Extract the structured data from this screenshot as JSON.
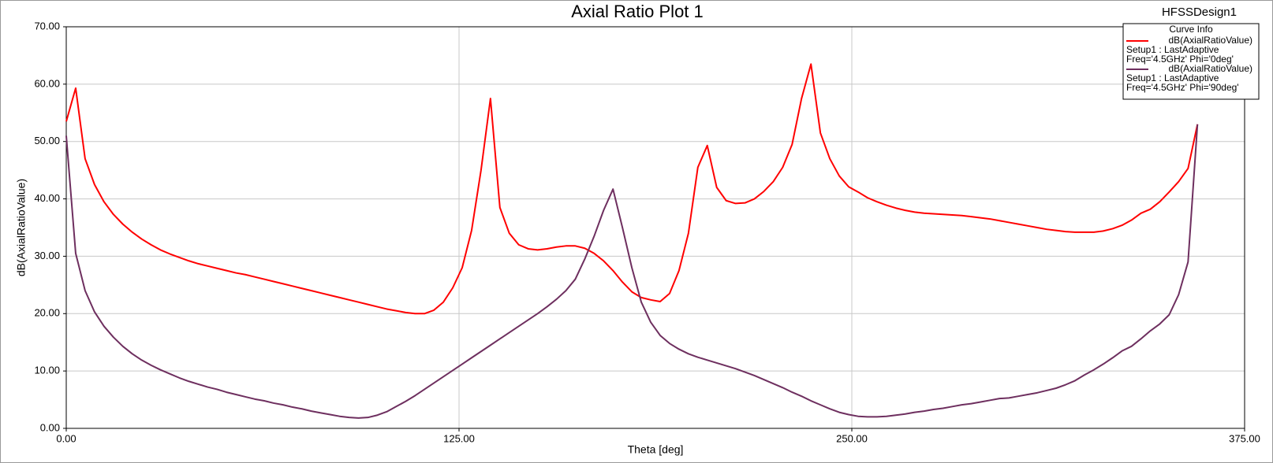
{
  "chart_data": {
    "type": "line",
    "title": "Axial Ratio Plot 1",
    "corner_label": "HFSSDesign1",
    "x_label": "Theta [deg]",
    "y_label": "dB(AxialRatioValue)",
    "legend_title": "Curve Info",
    "legend_position": "upper right",
    "grid": true,
    "xlim": [
      0,
      375
    ],
    "ylim": [
      0,
      70
    ],
    "xticks": [
      {
        "value": 0,
        "label": "0.00"
      },
      {
        "value": 125,
        "label": "125.00"
      },
      {
        "value": 250,
        "label": "250.00"
      },
      {
        "value": 375,
        "label": "375.00"
      }
    ],
    "yticks": [
      {
        "value": 0,
        "label": "0.00"
      },
      {
        "value": 10,
        "label": "10.00"
      },
      {
        "value": 20,
        "label": "20.00"
      },
      {
        "value": 30,
        "label": "30.00"
      },
      {
        "value": 40,
        "label": "40.00"
      },
      {
        "value": 50,
        "label": "50.00"
      },
      {
        "value": 60,
        "label": "60.00"
      },
      {
        "value": 70,
        "label": "70.00"
      }
    ],
    "x": [
      0,
      3,
      6,
      9,
      12,
      15,
      18,
      21,
      24,
      27,
      30,
      33,
      36,
      39,
      42,
      45,
      48,
      51,
      54,
      57,
      60,
      63,
      66,
      69,
      72,
      75,
      78,
      81,
      84,
      87,
      90,
      93,
      96,
      99,
      102,
      105,
      108,
      111,
      114,
      117,
      120,
      123,
      126,
      129,
      132,
      135,
      138,
      141,
      144,
      147,
      150,
      153,
      156,
      159,
      162,
      165,
      168,
      171,
      174,
      177,
      180,
      183,
      186,
      189,
      192,
      195,
      198,
      201,
      204,
      207,
      210,
      213,
      216,
      219,
      222,
      225,
      228,
      231,
      234,
      237,
      240,
      243,
      246,
      249,
      252,
      255,
      258,
      261,
      264,
      267,
      270,
      273,
      276,
      279,
      282,
      285,
      288,
      291,
      294,
      297,
      300,
      303,
      306,
      309,
      312,
      315,
      318,
      321,
      324,
      327,
      330,
      333,
      336,
      339,
      342,
      345,
      348,
      351,
      354,
      357,
      360
    ],
    "series": [
      {
        "name": "dB(AxialRatioValue)",
        "description": [
          "Setup1 : LastAdaptive",
          "Freq='4.5GHz' Phi='0deg'"
        ],
        "color": "#ff0000",
        "values": [
          53.5,
          59.3,
          47,
          42.5,
          39.5,
          37.3,
          35.6,
          34.2,
          33,
          32,
          31.1,
          30.4,
          29.8,
          29.2,
          28.7,
          28.3,
          27.9,
          27.5,
          27.1,
          26.8,
          26.4,
          26,
          25.6,
          25.2,
          24.8,
          24.4,
          24,
          23.6,
          23.2,
          22.8,
          22.4,
          22,
          21.6,
          21.2,
          20.8,
          20.5,
          20.2,
          20.0,
          20.0,
          20.6,
          22,
          24.5,
          28,
          34.5,
          45,
          57.5,
          38.5,
          34,
          32,
          31.3,
          31.1,
          31.3,
          31.6,
          31.8,
          31.8,
          31.4,
          30.5,
          29.2,
          27.5,
          25.5,
          23.8,
          22.8,
          22.4,
          22.1,
          23.5,
          27.5,
          34,
          45.5,
          49.3,
          42,
          39.7,
          39.2,
          39.3,
          40,
          41.3,
          43,
          45.5,
          49.5,
          57.5,
          63.5,
          51.5,
          47,
          44,
          42.1,
          41.2,
          40.2,
          39.5,
          38.9,
          38.4,
          38.0,
          37.7,
          37.5,
          37.4,
          37.3,
          37.2,
          37.1,
          36.9,
          36.7,
          36.5,
          36.2,
          35.9,
          35.6,
          35.3,
          35.0,
          34.7,
          34.5,
          34.3,
          34.2,
          34.2,
          34.2,
          34.4,
          34.8,
          35.4,
          36.3,
          37.5,
          38.2,
          39.5,
          41.2,
          43,
          45.3,
          53
        ]
      },
      {
        "name": "dB(AxialRatioValue)",
        "description": [
          "Setup1 : LastAdaptive",
          "Freq='4.5GHz' Phi='90deg'"
        ],
        "color": "#6e2f5f",
        "values": [
          51,
          30.5,
          24,
          20.3,
          17.8,
          15.9,
          14.3,
          13,
          11.9,
          11,
          10.2,
          9.5,
          8.8,
          8.2,
          7.7,
          7.2,
          6.8,
          6.3,
          5.9,
          5.5,
          5.1,
          4.8,
          4.4,
          4.1,
          3.7,
          3.4,
          3.0,
          2.7,
          2.4,
          2.1,
          1.9,
          1.8,
          1.9,
          2.3,
          2.9,
          3.8,
          4.7,
          5.7,
          6.8,
          7.9,
          9,
          10.1,
          11.2,
          12.3,
          13.4,
          14.5,
          15.6,
          16.7,
          17.8,
          18.9,
          20,
          21.2,
          22.5,
          24,
          26,
          29.5,
          33.5,
          38,
          41.7,
          35,
          28,
          22,
          18.5,
          16.2,
          14.8,
          13.8,
          13,
          12.4,
          11.9,
          11.4,
          10.9,
          10.4,
          9.8,
          9.2,
          8.5,
          7.8,
          7.1,
          6.3,
          5.6,
          4.8,
          4.1,
          3.4,
          2.8,
          2.4,
          2.1,
          2.0,
          2.0,
          2.1,
          2.3,
          2.5,
          2.8,
          3.0,
          3.3,
          3.5,
          3.8,
          4.1,
          4.3,
          4.6,
          4.9,
          5.2,
          5.3,
          5.6,
          5.9,
          6.2,
          6.6,
          7.0,
          7.6,
          8.3,
          9.3,
          10.2,
          11.2,
          12.3,
          13.5,
          14.3,
          15.6,
          17,
          18.2,
          19.8,
          23.3,
          29,
          53
        ]
      }
    ]
  }
}
